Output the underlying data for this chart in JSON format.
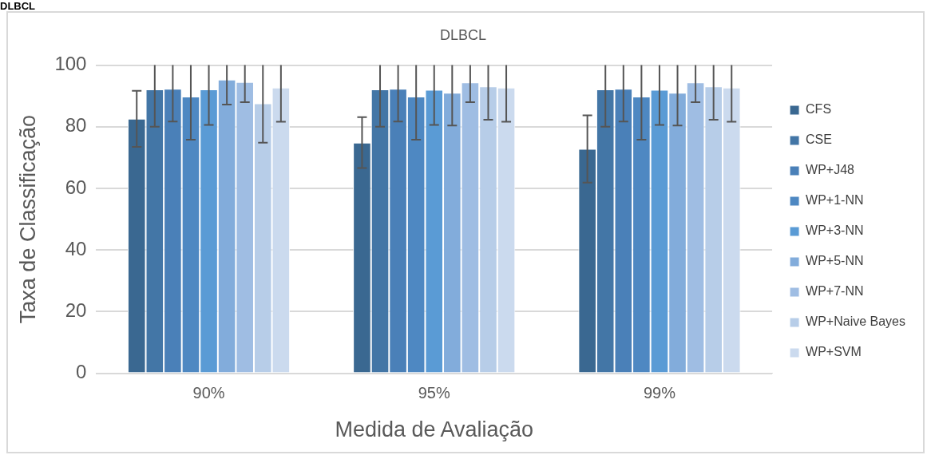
{
  "chart_data": {
    "type": "bar",
    "title": "DLBCL",
    "subtitle": "DLBCL",
    "xlabel": "Medida de Avaliação",
    "ylabel": "Taxa de Classificação",
    "categories": [
      "90%",
      "95%",
      "99%"
    ],
    "series": [
      {
        "name": "CFS",
        "color": "#3a6891",
        "values": [
          82.6,
          74.8,
          72.8
        ],
        "errors": [
          [
            73.5,
            91.7
          ],
          [
            66.6,
            83.1
          ],
          [
            61.9,
            83.7
          ]
        ]
      },
      {
        "name": "CSE",
        "color": "#4376a6",
        "values": [
          92.1,
          92.1,
          92.1
        ],
        "errors": [
          [
            80,
            100
          ],
          [
            80,
            100
          ],
          [
            80,
            100
          ]
        ]
      },
      {
        "name": "WP+J48",
        "color": "#4a80b8",
        "values": [
          92.3,
          92.3,
          92.3
        ],
        "errors": [
          [
            81.7,
            100
          ],
          [
            81.7,
            100
          ],
          [
            81.7,
            100
          ]
        ]
      },
      {
        "name": "WP+1-NN",
        "color": "#4e88c2",
        "values": [
          89.8,
          89.8,
          89.8
        ],
        "errors": [
          [
            75.8,
            100
          ],
          [
            75.8,
            100
          ],
          [
            75.8,
            100
          ]
        ]
      },
      {
        "name": "WP+3-NN",
        "color": "#5a9bd5",
        "values": [
          92.1,
          92.0,
          92.0
        ],
        "errors": [
          [
            80.6,
            100
          ],
          [
            80.6,
            100
          ],
          [
            80.6,
            100
          ]
        ]
      },
      {
        "name": "WP+5-NN",
        "color": "#82acdb",
        "values": [
          95.3,
          91.0,
          91.0
        ],
        "errors": [
          [
            87.2,
            100
          ],
          [
            80.4,
            100
          ],
          [
            80.4,
            100
          ]
        ]
      },
      {
        "name": "WP+7-NN",
        "color": "#9fbde3",
        "values": [
          94.5,
          94.4,
          94.4
        ],
        "errors": [
          [
            88,
            100
          ],
          [
            88,
            100
          ],
          [
            88,
            100
          ]
        ]
      },
      {
        "name": "WP+Naive Bayes",
        "color": "#b7cde8",
        "values": [
          87.6,
          93.1,
          93.1
        ],
        "errors": [
          [
            74.8,
            100
          ],
          [
            82.3,
            100
          ],
          [
            82.3,
            100
          ]
        ]
      },
      {
        "name": "WP+SVM",
        "color": "#cbdaee",
        "values": [
          92.7,
          92.7,
          92.7
        ],
        "errors": [
          [
            81.6,
            100
          ],
          [
            81.6,
            100
          ],
          [
            81.6,
            100
          ]
        ]
      }
    ],
    "ylim": [
      0,
      100
    ],
    "yticks": [
      0,
      20,
      40,
      60,
      80,
      100
    ],
    "grid": "y",
    "legend": "right"
  }
}
